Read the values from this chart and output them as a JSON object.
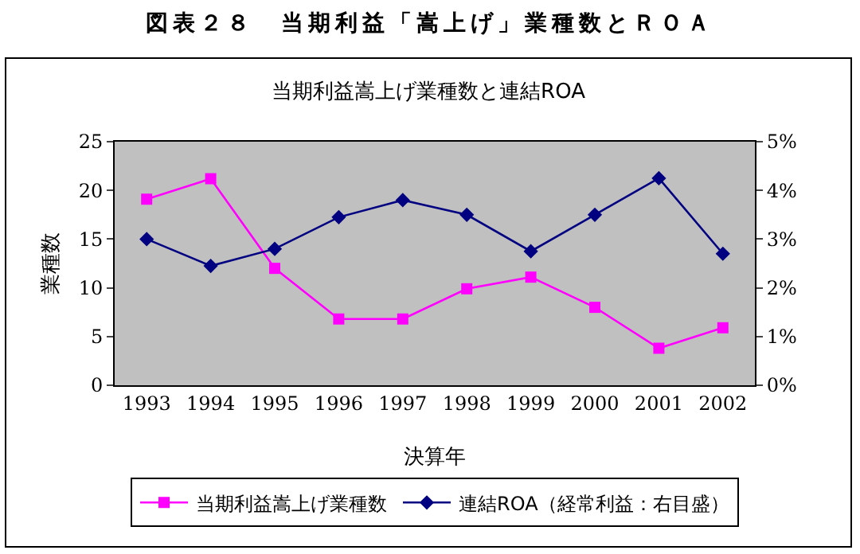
{
  "chart_data": {
    "type": "line",
    "title": "図表２８　当期利益「嵩上げ」業種数とＲＯＡ",
    "subtitle": "当期利益嵩上げ業種数と連結ROA",
    "xlabel": "決算年",
    "ylabel": "業種数",
    "categories": [
      "1993",
      "1994",
      "1995",
      "1996",
      "1997",
      "1998",
      "1999",
      "2000",
      "2001",
      "2002"
    ],
    "series": [
      {
        "name": "当期利益嵩上げ業種数",
        "color": "#ff00ff",
        "marker": "square",
        "values": [
          19.1,
          21.2,
          12.0,
          6.8,
          6.8,
          9.9,
          11.1,
          8.0,
          3.8,
          5.9
        ]
      },
      {
        "name": "連結ROA（経常利益：右目盛）",
        "color": "#000080",
        "marker": "diamond",
        "axis": "y2",
        "values": [
          3.0,
          2.45,
          2.8,
          3.45,
          3.8,
          3.5,
          2.75,
          3.5,
          4.25,
          2.7
        ]
      }
    ],
    "ylim": [
      0,
      25
    ],
    "yticks": [
      0,
      5,
      10,
      15,
      20,
      25
    ],
    "y2lim": [
      0,
      5
    ],
    "y2ticks": [
      {
        "value": 0,
        "label": "0%"
      },
      {
        "value": 1,
        "label": "1%"
      },
      {
        "value": 2,
        "label": "2%"
      },
      {
        "value": 3,
        "label": "3%"
      },
      {
        "value": 4,
        "label": "4%"
      },
      {
        "value": 5,
        "label": "5%"
      }
    ],
    "grid": false,
    "legend": "bottom"
  }
}
